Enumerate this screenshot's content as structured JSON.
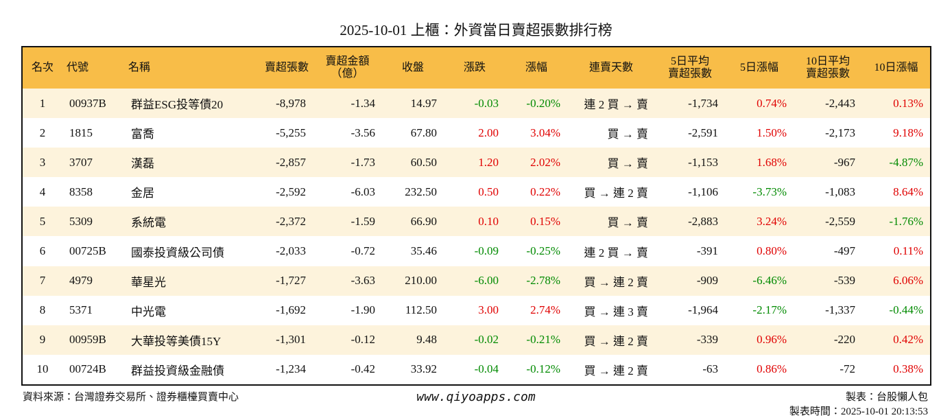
{
  "header": {
    "title": "2025-10-01 上櫃：外資當日賣超張數排行榜"
  },
  "table": {
    "columns": [
      "名次",
      "代號",
      "名稱",
      "賣超張數",
      "賣超金額\n（億）",
      "收盤",
      "漲跌",
      "漲幅",
      "連賣天數",
      "5日平均\n賣超張數",
      "5日漲幅",
      "10日平均\n賣超張數",
      "10日漲幅"
    ],
    "rows": [
      [
        "1",
        "00937B",
        "群益ESG投等債20",
        "-8,978",
        "-1.34",
        "14.97",
        "-0.03",
        "-0.20%",
        "連 2 買 → 賣",
        "-1,734",
        "0.74%",
        "-2,443",
        "0.13%"
      ],
      [
        "2",
        "1815",
        "富喬",
        "-5,255",
        "-3.56",
        "67.80",
        "2.00",
        "3.04%",
        "買 → 賣",
        "-2,591",
        "1.50%",
        "-2,173",
        "9.18%"
      ],
      [
        "3",
        "3707",
        "漢磊",
        "-2,857",
        "-1.73",
        "60.50",
        "1.20",
        "2.02%",
        "買 → 賣",
        "-1,153",
        "1.68%",
        "-967",
        "-4.87%"
      ],
      [
        "4",
        "8358",
        "金居",
        "-2,592",
        "-6.03",
        "232.50",
        "0.50",
        "0.22%",
        "買 → 連 2 賣",
        "-1,106",
        "-3.73%",
        "-1,083",
        "8.64%"
      ],
      [
        "5",
        "5309",
        "系統電",
        "-2,372",
        "-1.59",
        "66.90",
        "0.10",
        "0.15%",
        "買 → 賣",
        "-2,883",
        "3.24%",
        "-2,559",
        "-1.76%"
      ],
      [
        "6",
        "00725B",
        "國泰投資級公司債",
        "-2,033",
        "-0.72",
        "35.46",
        "-0.09",
        "-0.25%",
        "連 2 買 → 賣",
        "-391",
        "0.80%",
        "-497",
        "0.11%"
      ],
      [
        "7",
        "4979",
        "華星光",
        "-1,727",
        "-3.63",
        "210.00",
        "-6.00",
        "-2.78%",
        "買 → 連 2 賣",
        "-909",
        "-6.46%",
        "-539",
        "6.06%"
      ],
      [
        "8",
        "5371",
        "中光電",
        "-1,692",
        "-1.90",
        "112.50",
        "3.00",
        "2.74%",
        "買 → 連 3 賣",
        "-1,964",
        "-2.17%",
        "-1,337",
        "-0.44%"
      ],
      [
        "9",
        "00959B",
        "大華投等美債15Y",
        "-1,301",
        "-0.12",
        "9.48",
        "-0.02",
        "-0.21%",
        "買 → 連 2 賣",
        "-339",
        "0.96%",
        "-220",
        "0.42%"
      ],
      [
        "10",
        "00724B",
        "群益投資級金融債",
        "-1,234",
        "-0.42",
        "33.92",
        "-0.04",
        "-0.12%",
        "買 → 連 2 賣",
        "-63",
        "0.86%",
        "-72",
        "0.38%"
      ]
    ]
  },
  "footer": {
    "source": "資料來源：台灣證券交易所、證券櫃檯買賣中心",
    "site": "www.qiyoapps.com",
    "maker": "製表：台股懶人包",
    "time": "製表時間：2025-10-01 20:13:53"
  }
}
